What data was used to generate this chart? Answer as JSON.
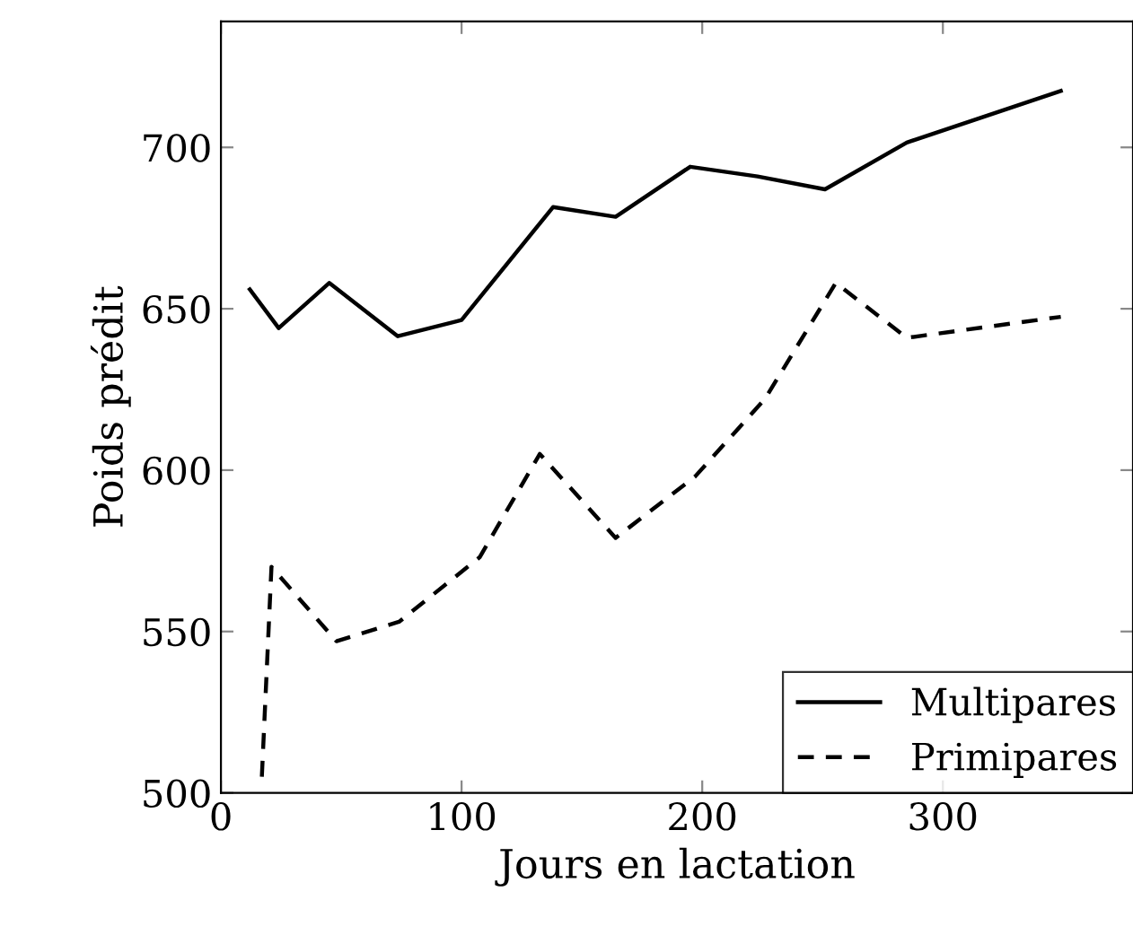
{
  "chart_data": {
    "type": "line",
    "xlabel": "Jours en lactation",
    "ylabel": "Poids prédit",
    "xlim": [
      0,
      379
    ],
    "ylim": [
      500,
      739
    ],
    "xticks": [
      0,
      100,
      200,
      300
    ],
    "yticks": [
      500,
      550,
      600,
      650,
      700
    ],
    "grid": false,
    "legend": "bottom right",
    "marker": "none",
    "series": [
      {
        "name": "Multipares",
        "color": "#000000",
        "line_style": "solid",
        "x": [
          12,
          24,
          45,
          73.5,
          100,
          138,
          164,
          195,
          223,
          251,
          285,
          349
        ],
        "values": [
          656,
          644,
          658,
          641.5,
          646.5,
          681.5,
          678.5,
          694,
          691,
          687,
          701.5,
          717.5
        ]
      },
      {
        "name": "Primipares",
        "color": "#000000",
        "line_style": "dashed",
        "x": [
          17,
          21,
          48,
          74,
          107.5,
          132.5,
          164,
          197,
          226,
          255.5,
          285,
          349
        ],
        "values": [
          505,
          570,
          547,
          553,
          573,
          605,
          579,
          598,
          622,
          658,
          641,
          647.5
        ]
      }
    ]
  }
}
